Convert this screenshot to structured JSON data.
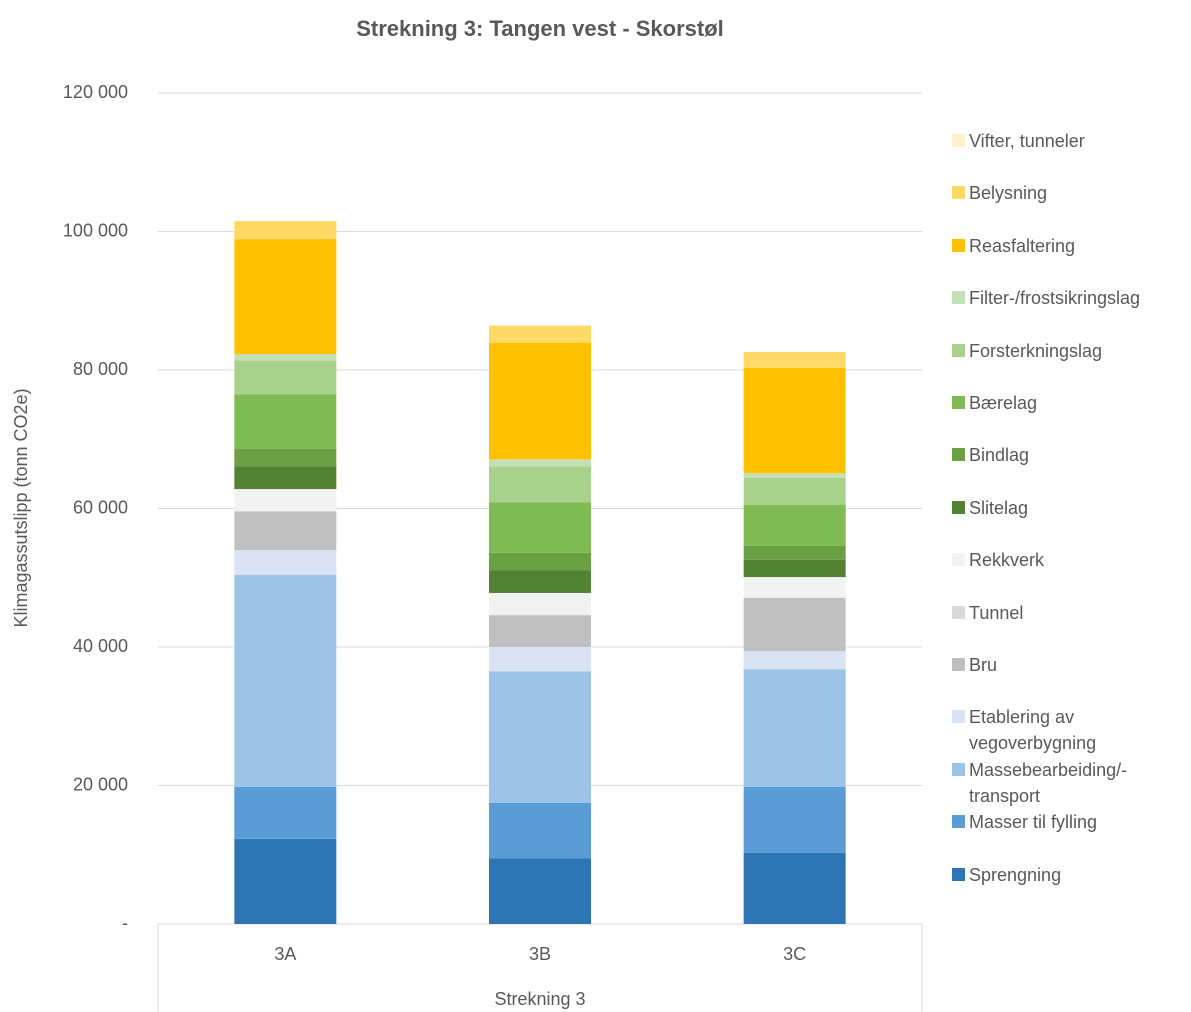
{
  "chart_data": {
    "type": "stacked_bar",
    "title": "Strekning 3: Tangen vest - Skorstøl",
    "ylabel": "Klimagassutslipp (tonn CO2e)",
    "xlabel": "Strekning 3",
    "categories": [
      "3A",
      "3B",
      "3C"
    ],
    "series": [
      {
        "name": "Sprengning",
        "color": "#2e75b6",
        "values": [
          12300,
          9500,
          10300
        ]
      },
      {
        "name": "Masser til fylling",
        "color": "#5b9bd5",
        "values": [
          7500,
          8000,
          9500
        ]
      },
      {
        "name": "Massebearbeiding/-transport",
        "color": "#9dc3e6",
        "values": [
          30600,
          19000,
          17000
        ]
      },
      {
        "name": "Etablering av vegoverbygning",
        "color": "#dae3f3",
        "values": [
          3600,
          3500,
          2600
        ]
      },
      {
        "name": "Bru",
        "color": "#bfbfbf",
        "values": [
          5600,
          4600,
          7700
        ]
      },
      {
        "name": "Tunnel",
        "color": "#d9d9d9",
        "values": [
          0,
          0,
          0
        ]
      },
      {
        "name": "Rekkverk",
        "color": "#f2f2f2",
        "values": [
          3200,
          3200,
          3000
        ]
      },
      {
        "name": "Slitelag",
        "color": "#548235",
        "values": [
          3300,
          3300,
          2500
        ]
      },
      {
        "name": "Bindlag",
        "color": "#6aa043",
        "values": [
          2500,
          2500,
          2000
        ]
      },
      {
        "name": "Bærelag",
        "color": "#7fba52",
        "values": [
          7900,
          7300,
          5900
        ]
      },
      {
        "name": "Forsterkningslag",
        "color": "#a9d18e",
        "values": [
          4900,
          5200,
          3900
        ]
      },
      {
        "name": "Filter-/frostsikringslag",
        "color": "#c5e0b4",
        "values": [
          900,
          1000,
          700
        ]
      },
      {
        "name": "Reasfaltering",
        "color": "#ffc000",
        "values": [
          16600,
          16800,
          15200
        ]
      },
      {
        "name": "Belysning",
        "color": "#ffd966",
        "values": [
          2600,
          2500,
          2300
        ]
      },
      {
        "name": "Vifter, tunneler",
        "color": "#fff2cc",
        "values": [
          0,
          0,
          0
        ]
      }
    ],
    "ylim": [
      0,
      120000
    ],
    "yticks": [
      {
        "value": 0,
        "label": "-"
      },
      {
        "value": 20000,
        "label": "20 000"
      },
      {
        "value": 40000,
        "label": "40 000"
      },
      {
        "value": 60000,
        "label": "60 000"
      },
      {
        "value": 80000,
        "label": "80 000"
      },
      {
        "value": 100000,
        "label": "100 000"
      },
      {
        "value": 120000,
        "label": "120 000"
      }
    ],
    "grid": true
  }
}
